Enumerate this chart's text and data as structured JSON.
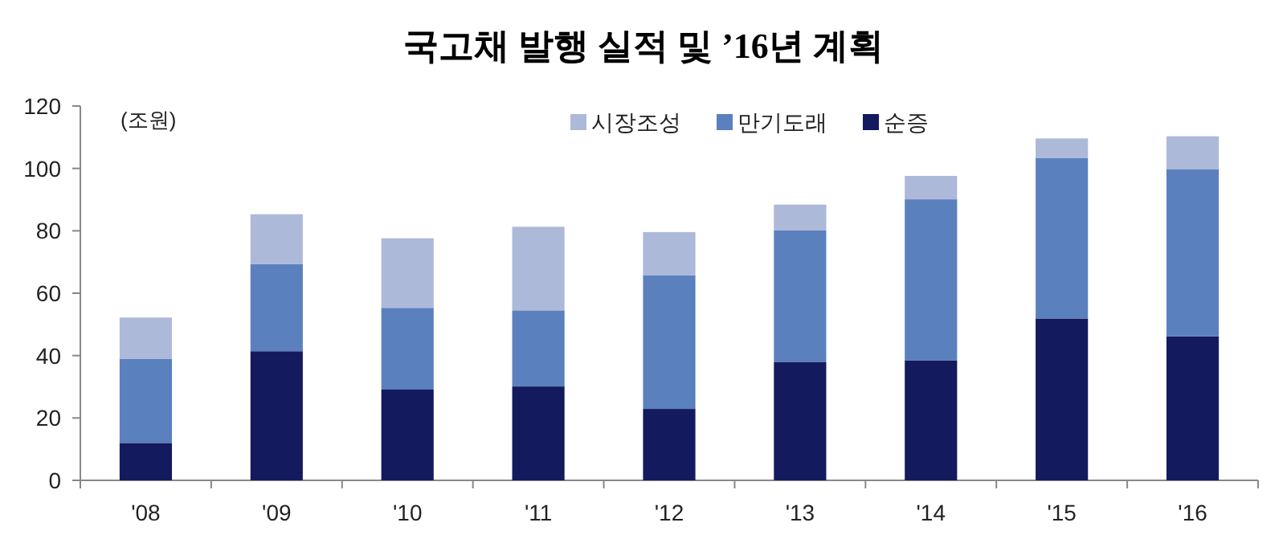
{
  "chart_data": {
    "type": "bar",
    "title": "국고채 발행 실적 및 ’16년 계획",
    "ylabel": "(조원)",
    "categories": [
      "'08",
      "'09",
      "'10",
      "'11",
      "'12",
      "'13",
      "'14",
      "'15",
      "'16"
    ],
    "stacked": true,
    "series": [
      {
        "name": "순증",
        "color": "#141a5e",
        "values": [
          12.0,
          41.4,
          29.1,
          30.1,
          22.9,
          38.0,
          38.5,
          51.9,
          46.2
        ]
      },
      {
        "name": "만기도래",
        "color": "#5b80be",
        "values": [
          26.9,
          27.9,
          26.2,
          24.4,
          42.9,
          42.1,
          51.6,
          51.5,
          53.6
        ]
      },
      {
        "name": "시장조성",
        "color": "#adb9d9",
        "values": [
          13.3,
          16.0,
          22.3,
          26.8,
          13.8,
          8.3,
          7.5,
          6.2,
          10.5
        ]
      }
    ],
    "ylim": [
      0,
      120
    ],
    "yticks": [
      0,
      20,
      40,
      60,
      80,
      100,
      120
    ],
    "legend": "top",
    "grid": false
  }
}
